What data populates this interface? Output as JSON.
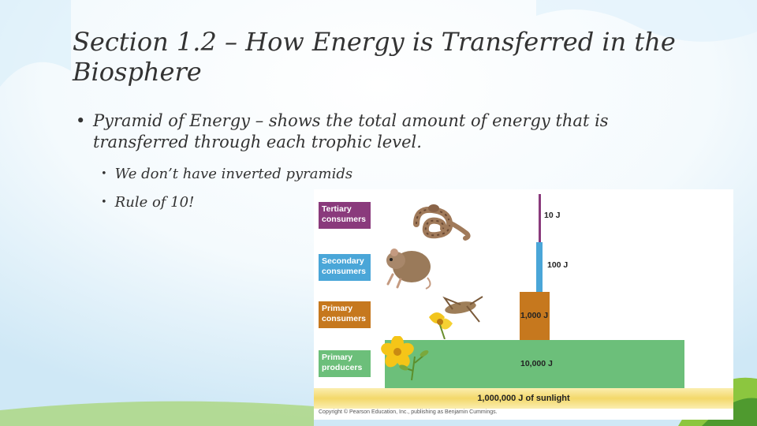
{
  "title": "Section 1.2 – How Energy is Transferred in the Biosphere",
  "bullets": {
    "main_marker": "•",
    "main": "Pyramid of Energy – shows the total amount of energy that is transferred through each trophic level.",
    "sub_marker": "•",
    "sub": [
      "We don’t have inverted pyramids",
      "Rule of 10!"
    ]
  },
  "figure": {
    "levels": [
      {
        "label_line1": "Tertiary",
        "label_line2": "consumers",
        "energy_label": "10 J",
        "energy_j": 10,
        "color": "#8a3a7c",
        "organism_icon": "snake-icon"
      },
      {
        "label_line1": "Secondary",
        "label_line2": "consumers",
        "energy_label": "100 J",
        "energy_j": 100,
        "color": "#4aa6d8",
        "organism_icon": "mouse-icon"
      },
      {
        "label_line1": "Primary",
        "label_line2": "consumers",
        "energy_label": "1,000 J",
        "energy_j": 1000,
        "color": "#c6781e",
        "organism_icon": "grasshopper-icon"
      },
      {
        "label_line1": "Primary",
        "label_line2": "producers",
        "energy_label": "10,000 J",
        "energy_j": 10000,
        "color": "#6cbf7a",
        "organism_icon": "flower-icon"
      }
    ],
    "sunlight_label": "1,000,000 J of sunlight",
    "sunlight_color": "#f3d86a",
    "copyright": "Copyright © Pearson Education, Inc., publishing as Benjamin Cummings."
  },
  "colors": {
    "sky": "#d4ebf7",
    "grass_light": "#8cc63f",
    "grass_dark": "#4f9a2f",
    "text": "#333333"
  }
}
